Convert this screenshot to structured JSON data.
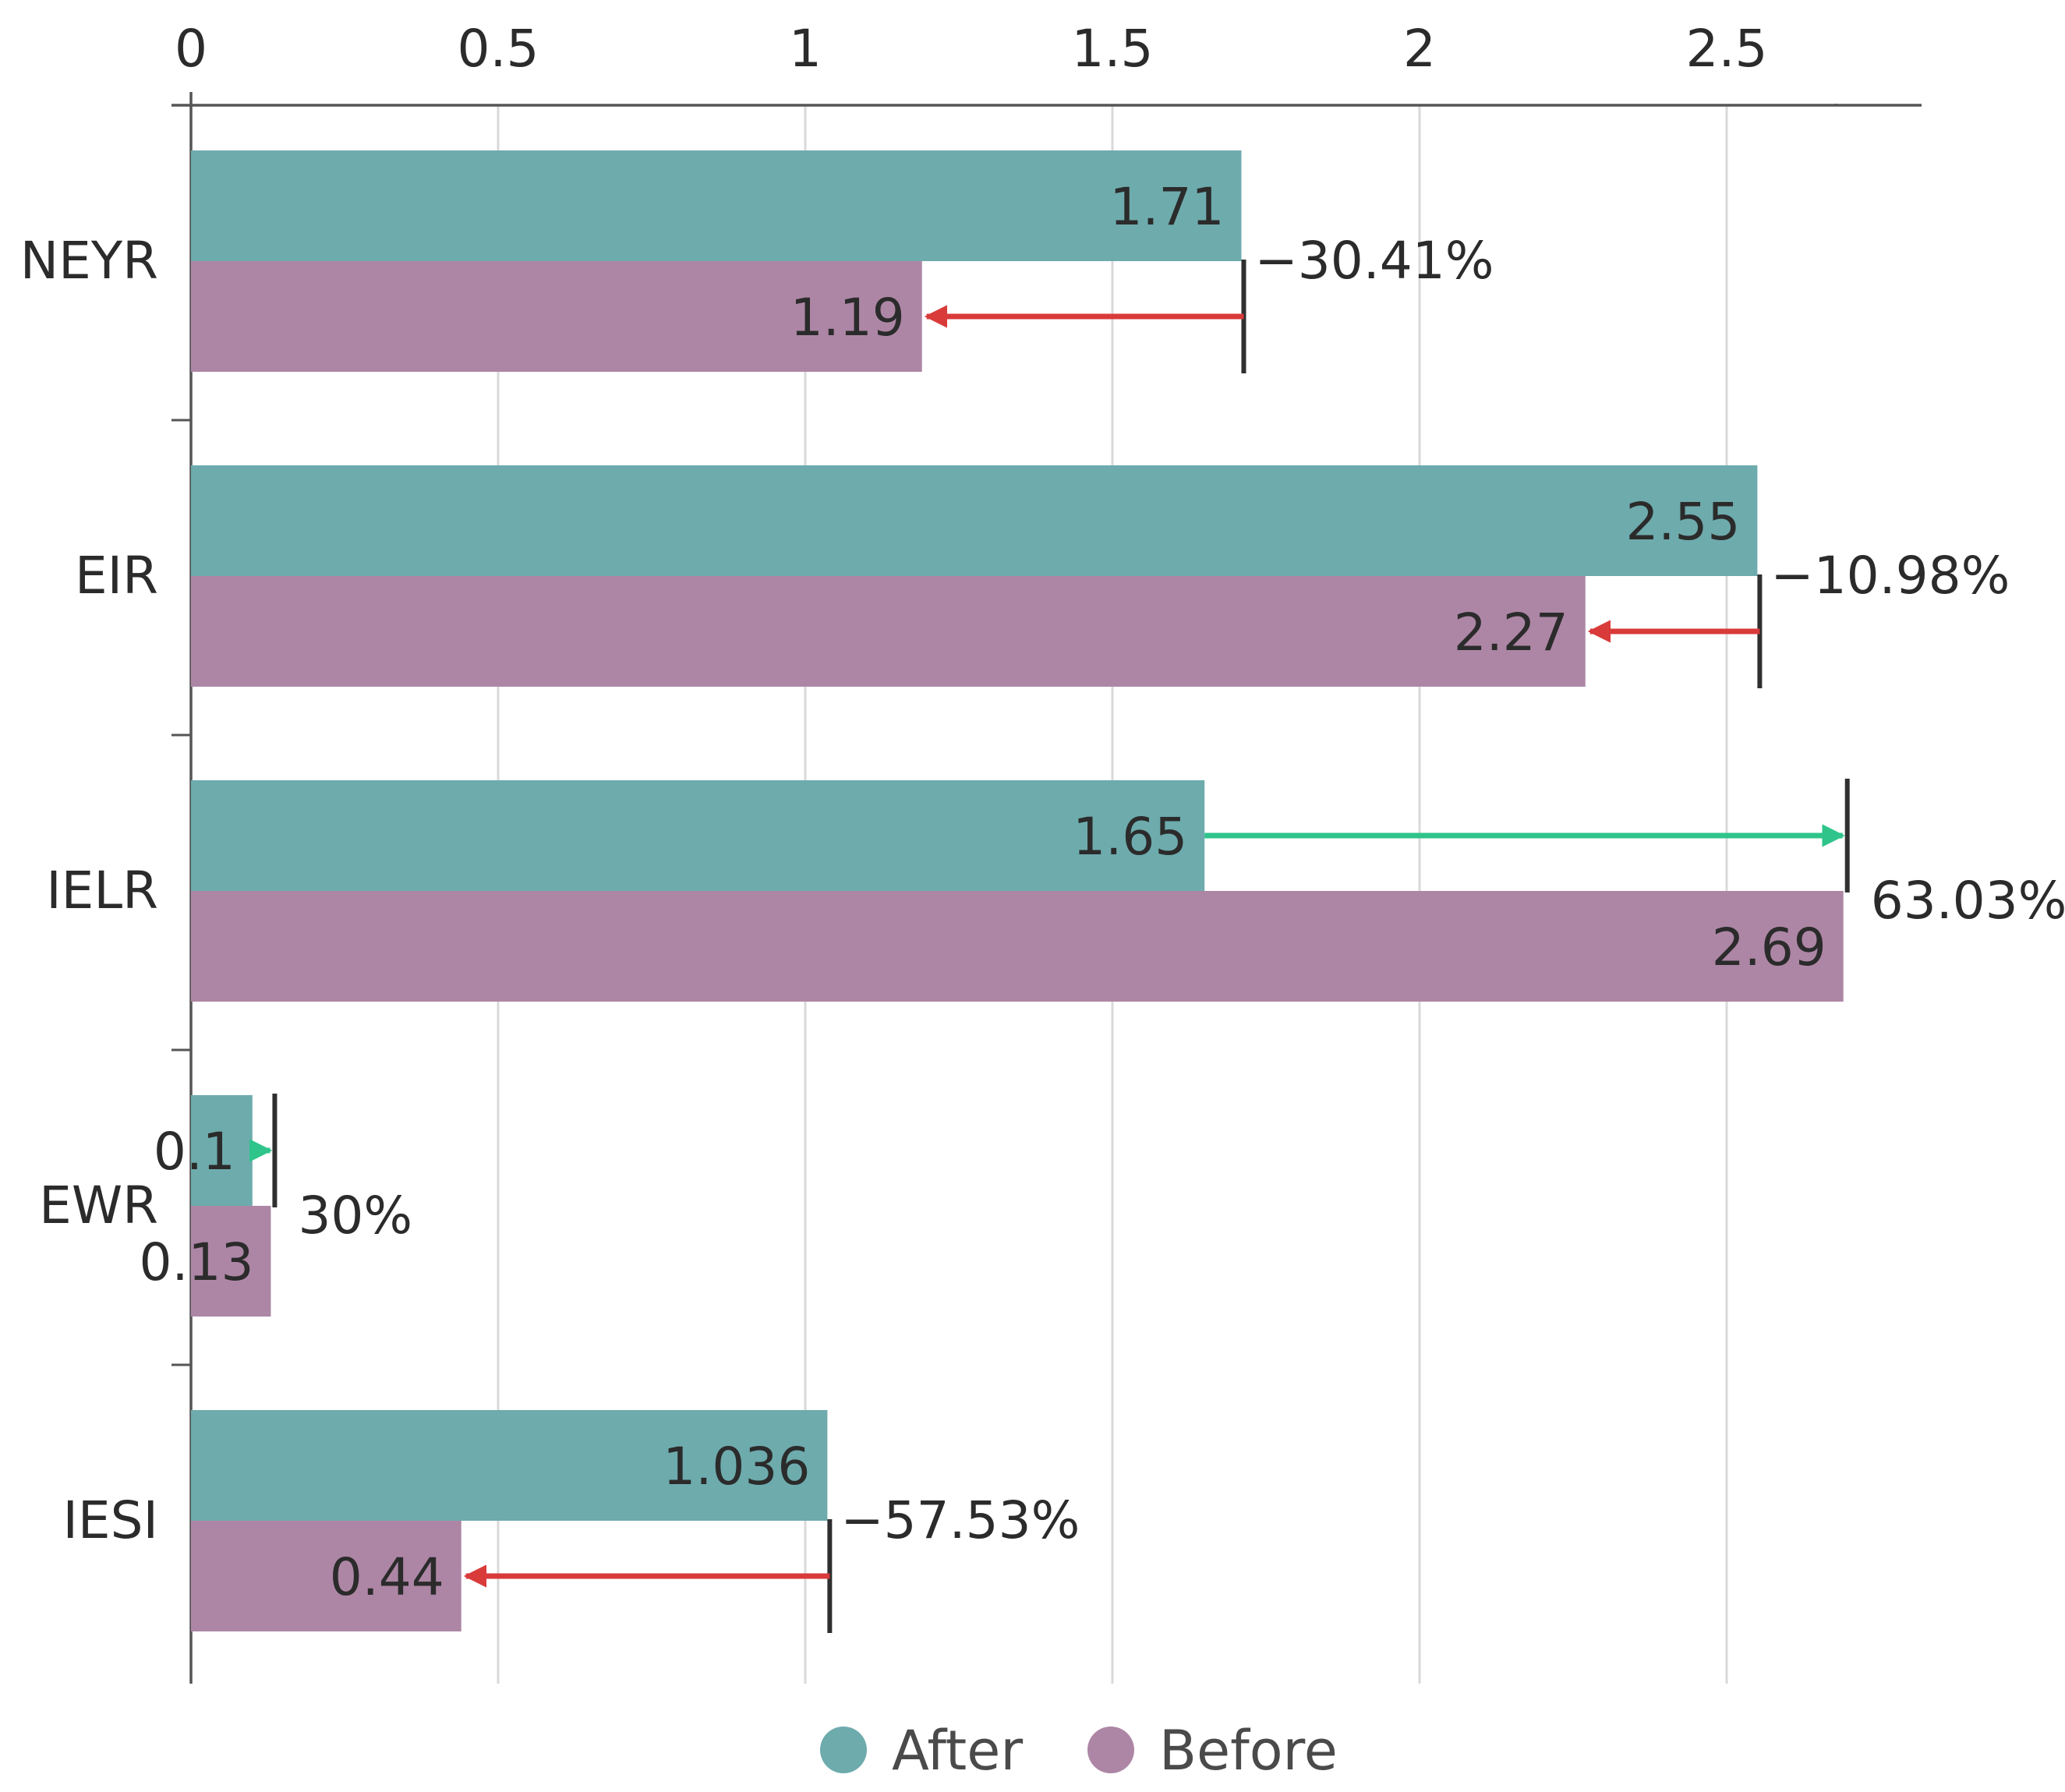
{
  "chart_data": {
    "type": "bar",
    "orientation": "horizontal",
    "title": "",
    "xlabel": "",
    "ylabel": "",
    "xlim": [
      0,
      2.82
    ],
    "x_ticks": [
      0,
      0.5,
      1,
      1.5,
      2,
      2.5
    ],
    "x_tick_labels": [
      "0",
      "0.5",
      "1",
      "1.5",
      "2",
      "2.5"
    ],
    "x_axis_position": "top",
    "grid": true,
    "categories": [
      "NEYR",
      "EIR",
      "IELR",
      "EWR",
      "IESI"
    ],
    "series": [
      {
        "name": "After",
        "color": "#6eabad",
        "values": [
          1.71,
          2.55,
          1.65,
          0.1,
          1.036
        ],
        "labels": [
          "1.71",
          "2.55",
          "1.65",
          "0.1",
          "1.036"
        ]
      },
      {
        "name": "Before",
        "color": "#ad86a5",
        "values": [
          1.19,
          2.27,
          2.69,
          0.13,
          0.44
        ],
        "labels": [
          "1.19",
          "2.27",
          "2.69",
          "0.13",
          "0.44"
        ]
      }
    ],
    "changes": [
      {
        "category": "NEYR",
        "label": "−30.41%",
        "direction": "decrease"
      },
      {
        "category": "EIR",
        "label": "−10.98%",
        "direction": "decrease"
      },
      {
        "category": "IELR",
        "label": "63.03%",
        "direction": "increase"
      },
      {
        "category": "EWR",
        "label": "30%",
        "direction": "increase"
      },
      {
        "category": "IESI",
        "label": "−57.53%",
        "direction": "decrease"
      }
    ],
    "arrow_colors": {
      "increase": "#2ec48a",
      "decrease": "#d93a3a"
    },
    "legend": {
      "position": "bottom",
      "entries": [
        "After",
        "Before"
      ]
    }
  }
}
